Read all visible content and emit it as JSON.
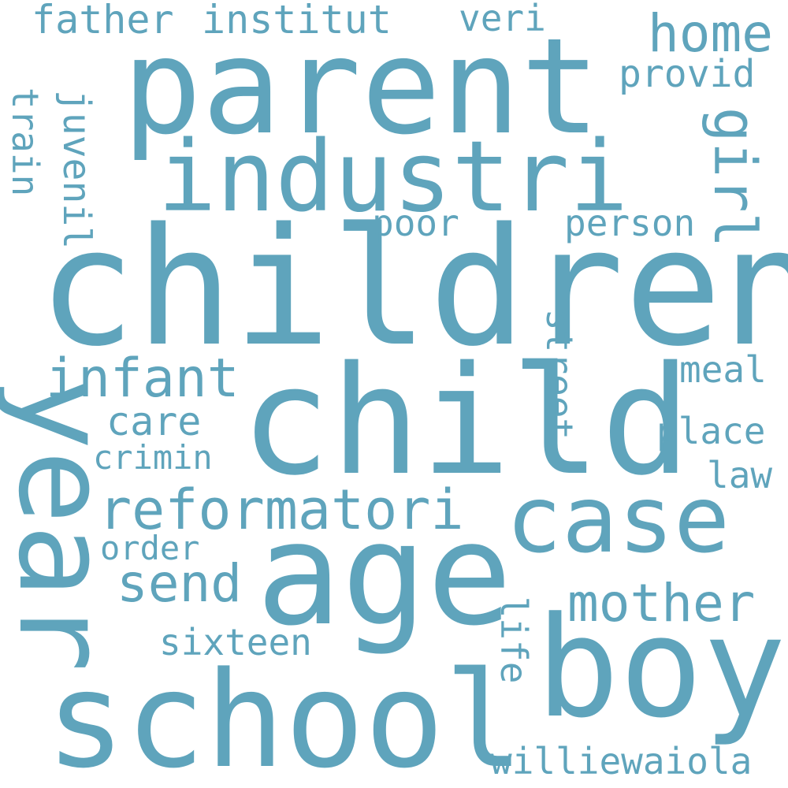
{
  "canvas": {
    "background": "#ffffff",
    "word_color": "#5fa4bc"
  },
  "words": [
    "children",
    "child",
    "parent",
    "industri",
    "year",
    "age",
    "boy",
    "school",
    "case",
    "reformatori",
    "infant",
    "mother",
    "send",
    "home",
    "girl",
    "father",
    "institut",
    "veri",
    "provid",
    "juvenil",
    "train",
    "poor",
    "person",
    "street",
    "meal",
    "care",
    "place",
    "crimin",
    "law",
    "order",
    "sixteen",
    "life",
    "williewaiola"
  ]
}
